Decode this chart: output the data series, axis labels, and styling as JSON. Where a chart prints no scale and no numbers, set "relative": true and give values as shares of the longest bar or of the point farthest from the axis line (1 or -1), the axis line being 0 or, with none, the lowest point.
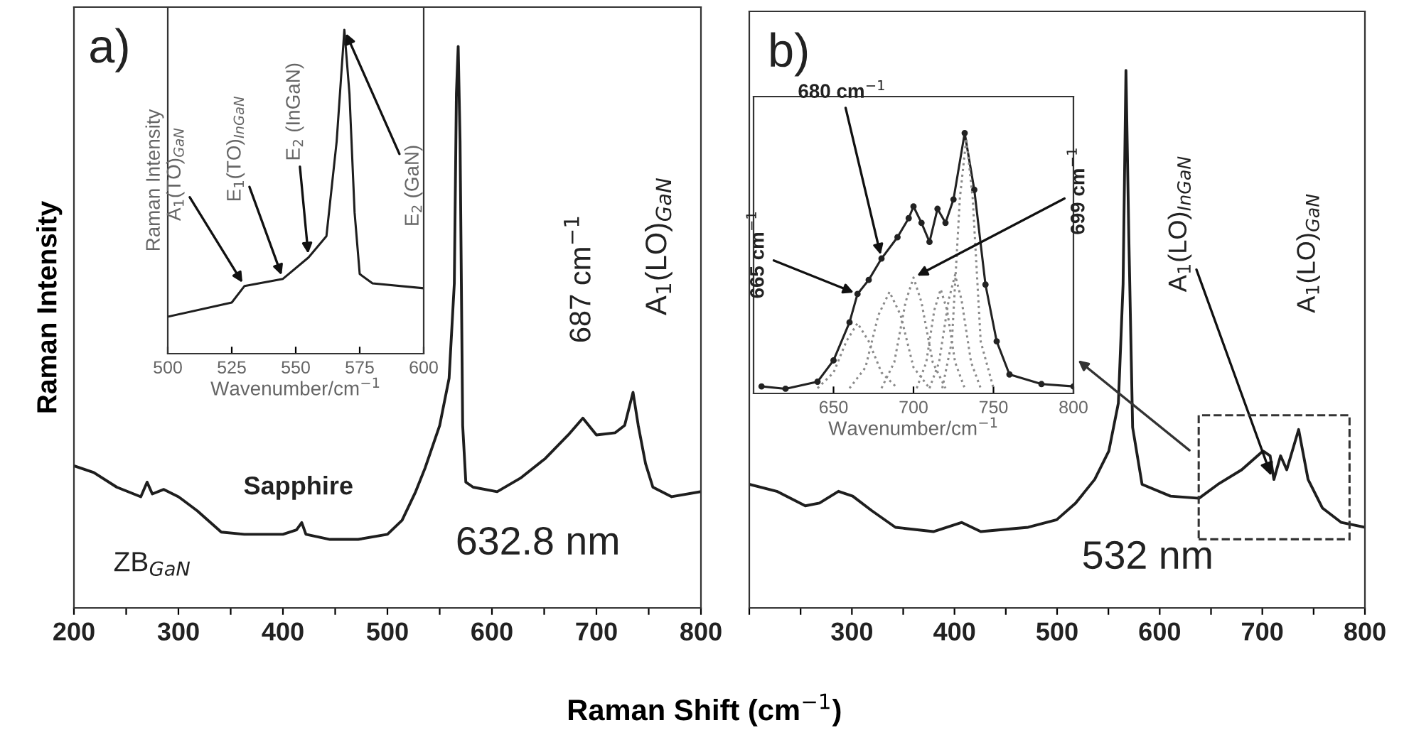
{
  "chart_data": [
    {
      "type": "line",
      "relative": true,
      "color": "#1e1e1e",
      "tick_labels": "x",
      "xlim": [
        200,
        800
      ],
      "xticks": [
        200,
        {
          "value": 250,
          "label": null
        },
        300,
        {
          "value": 350,
          "label": null
        },
        400,
        {
          "value": 450,
          "label": null
        },
        500,
        {
          "value": 550,
          "label": null
        },
        600,
        {
          "value": 650,
          "label": null
        },
        700,
        {
          "value": 750,
          "label": null
        },
        800
      ],
      "xlabel": "Raman Shift (cm$^{−1}$)",
      "ylabel": "Raman Intensity",
      "x": [
        200,
        219,
        241,
        264,
        270,
        275,
        286,
        300,
        318,
        341,
        363,
        400,
        413,
        418,
        422,
        445,
        472,
        500,
        514,
        527,
        536,
        550,
        559,
        564,
        566,
        567.7,
        569.5,
        572,
        575,
        582,
        605,
        628,
        651,
        673,
        687,
        700,
        718,
        727,
        735,
        740,
        747,
        754,
        772,
        800
      ],
      "values": [
        0.253,
        0.241,
        0.215,
        0.198,
        0.224,
        0.203,
        0.211,
        0.198,
        0.173,
        0.135,
        0.131,
        0.131,
        0.139,
        0.152,
        0.131,
        0.122,
        0.122,
        0.131,
        0.156,
        0.207,
        0.249,
        0.325,
        0.409,
        0.578,
        0.916,
        1,
        0.831,
        0.325,
        0.224,
        0.215,
        0.207,
        0.232,
        0.266,
        0.308,
        0.338,
        0.308,
        0.312,
        0.325,
        0.384,
        0.325,
        0.257,
        0.215,
        0.198,
        0.207
      ],
      "annotations": [
        "a)",
        {
          "text": "687 cm$^{−1}$",
          "x": 687,
          "y": 0.338
        },
        {
          "text": "A$_{1}$(LO)$_{GaN}$",
          "x": 735,
          "y": 0.384
        },
        "Sapphire",
        "ZB$_{GaN}$",
        "632.8 nm"
      ]
    },
    {
      "type": "line",
      "relative": true,
      "color": "#1e1e1e",
      "tick_labels": "x",
      "xlim": [
        500,
        600
      ],
      "xticks": [
        500,
        525,
        550,
        575,
        600
      ],
      "xlabel": "Wavenumber/cm$^{−1}$",
      "ylabel": "Raman Intensity",
      "x": [
        500,
        525,
        530,
        545,
        555,
        562,
        566,
        569,
        571,
        573,
        575,
        580,
        600
      ],
      "values": [
        0.114,
        0.158,
        0.209,
        0.231,
        0.297,
        0.363,
        0.656,
        1,
        0.802,
        0.436,
        0.246,
        0.217,
        0.202
      ],
      "annotations": [
        {
          "text": "A$_{1}$(TO)$_{GaN}$",
          "x": 530,
          "y": 0.209
        },
        {
          "text": "E$_{1}$(TO)$_{InGaN}$",
          "x": 545,
          "y": 0.231
        },
        {
          "text": "E$_{2}$ (InGaN)",
          "x": 555,
          "y": 0.297
        },
        {
          "text": "E$_{2}$ (GaN)",
          "x": 569,
          "y": 1
        }
      ]
    },
    {
      "type": "line",
      "relative": true,
      "color": "#1e1e1e",
      "tick_labels": "x",
      "xlim": [
        200,
        800
      ],
      "xticks": [
        {
          "value": 200,
          "label": null
        },
        {
          "value": 250,
          "label": null
        },
        300,
        {
          "value": 350,
          "label": null
        },
        400,
        {
          "value": 450,
          "label": null
        },
        500,
        {
          "value": 550,
          "label": null
        },
        600,
        {
          "value": 650,
          "label": null
        },
        700,
        {
          "value": 750,
          "label": null
        },
        800
      ],
      "x": [
        200,
        226.8,
        254.6,
        268.4,
        286.9,
        300.8,
        319.3,
        342.4,
        379.4,
        407.1,
        425.6,
        471.8,
        499.6,
        518,
        536.6,
        550.4,
        559.7,
        564.3,
        567.1,
        569.9,
        573.6,
        582.8,
        610.5,
        638.3,
        656.8,
        679.9,
        700.7,
        707.6,
        711.3,
        717.8,
        723.8,
        735.4,
        744.6,
        758.5,
        777,
        800
      ],
      "values": [
        0.23,
        0.217,
        0.19,
        0.195,
        0.217,
        0.208,
        0.181,
        0.15,
        0.142,
        0.159,
        0.142,
        0.15,
        0.164,
        0.195,
        0.239,
        0.292,
        0.381,
        0.602,
        1,
        0.69,
        0.336,
        0.23,
        0.208,
        0.204,
        0.23,
        0.257,
        0.292,
        0.283,
        0.239,
        0.283,
        0.257,
        0.332,
        0.239,
        0.186,
        0.159,
        0.15
      ],
      "annotations": [
        "b)",
        {
          "text": "A$_{1}$(LO)$_{InGaN}$",
          "x": 710,
          "y": 0.239
        },
        "A$_{1}$(LO)$_{GaN}$",
        "532 nm"
      ]
    },
    {
      "type": "line",
      "relative": true,
      "tick_labels": "x",
      "xlim": [
        600,
        800
      ],
      "xticks": [
        650,
        700,
        750,
        800
      ],
      "xlabel": "Wavenumber/cm$^{−1}$",
      "series": [
        {
          "type": "line",
          "color": "#222222",
          "marker": "circle",
          "line_style": "solid",
          "x": [
            605,
            620,
            640,
            650,
            660,
            665,
            672,
            680,
            690,
            697,
            700,
            705,
            710,
            715,
            720,
            725,
            732,
            738,
            745,
            752,
            760,
            780,
            800
          ],
          "values": [
            0.027,
            0.018,
            0.045,
            0.127,
            0.273,
            0.382,
            0.436,
            0.518,
            0.6,
            0.673,
            0.718,
            0.655,
            0.582,
            0.709,
            0.655,
            0.745,
            1,
            0.782,
            0.418,
            0.2,
            0.073,
            0.036,
            0.027
          ]
        },
        {
          "type": "line",
          "color": "#8a8a8a",
          "line_style": "dotted",
          "x": [
            640,
            650,
            658,
            665,
            672,
            680,
            690
          ],
          "values": [
            0.02,
            0.08,
            0.2,
            0.27,
            0.2,
            0.08,
            0.02
          ]
        },
        {
          "type": "line",
          "color": "#8a8a8a",
          "line_style": "dotted",
          "x": [
            660,
            670,
            678,
            685,
            692,
            700,
            710
          ],
          "values": [
            0.02,
            0.1,
            0.3,
            0.39,
            0.3,
            0.1,
            0.02
          ]
        },
        {
          "type": "line",
          "color": "#8a8a8a",
          "line_style": "dotted",
          "x": [
            680,
            688,
            695,
            700,
            705,
            712,
            720
          ],
          "values": [
            0.02,
            0.12,
            0.35,
            0.445,
            0.35,
            0.12,
            0.02
          ]
        },
        {
          "type": "line",
          "color": "#8a8a8a",
          "line_style": "dotted",
          "x": [
            702,
            708,
            713,
            717,
            721,
            726,
            732
          ],
          "values": [
            0.02,
            0.12,
            0.32,
            0.4,
            0.32,
            0.12,
            0.02
          ]
        },
        {
          "type": "line",
          "color": "#8a8a8a",
          "line_style": "dotted",
          "x": [
            710,
            716,
            722,
            726,
            730,
            736,
            742
          ],
          "values": [
            0.02,
            0.12,
            0.36,
            0.455,
            0.36,
            0.12,
            0.02
          ]
        },
        {
          "type": "line",
          "color": "#8a8a8a",
          "line_style": "dotted",
          "x": [
            718,
            724,
            729,
            733,
            737,
            742,
            750
          ],
          "values": [
            0.02,
            0.2,
            0.75,
            0.98,
            0.75,
            0.2,
            0.02
          ]
        }
      ],
      "annotations": [
        {
          "text": "680 cm$^{−1}$",
          "x": 680,
          "y": 0.518
        },
        {
          "text": "665 cm$^{−1}$",
          "x": 665,
          "y": 0.382
        },
        {
          "text": "699 cm$^{−1}$",
          "x": 700,
          "y": 0.445
        }
      ]
    }
  ]
}
